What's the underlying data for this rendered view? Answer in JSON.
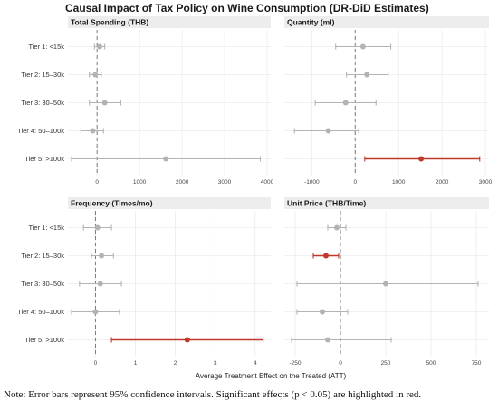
{
  "title": "Causal Impact of Tax Policy on Wine Consumption (DR-DiD Estimates)",
  "xlabel": "Average Treatment Effect on the Treated (ATT)",
  "note": "Note: Error bars represent 95% confidence intervals. Significant effects (p < 0.05) are highlighted in red.",
  "colors": {
    "significant": "#c0392b",
    "non_significant": "#b3b3b3",
    "zero_line": "#7a7a7a",
    "grid": "#ebebeb",
    "strip": "#ededed"
  },
  "chart_data": [
    {
      "type": "scatter",
      "panel": "Total Spending (THB)",
      "categories": [
        "Tier 1: <15k",
        "Tier 2: 15–30k",
        "Tier 3: 30–50k",
        "Tier 4: 50–100k",
        "Tier 5: >100k"
      ],
      "xlim": [
        -600,
        4000
      ],
      "xticks": [
        0,
        1000,
        2000,
        3000,
        4000
      ],
      "points": [
        {
          "estimate": 60,
          "lower": -60,
          "upper": 180,
          "significant": false
        },
        {
          "estimate": -40,
          "lower": -180,
          "upper": 100,
          "significant": false
        },
        {
          "estimate": 180,
          "lower": -180,
          "upper": 560,
          "significant": false
        },
        {
          "estimate": -100,
          "lower": -380,
          "upper": 150,
          "significant": false
        },
        {
          "estimate": 1620,
          "lower": -600,
          "upper": 3840,
          "significant": false
        }
      ]
    },
    {
      "type": "scatter",
      "panel": "Quantity (ml)",
      "categories": [
        "Tier 1: <15k",
        "Tier 2: 15–30k",
        "Tier 3: 30–50k",
        "Tier 4: 50–100k",
        "Tier 5: >100k"
      ],
      "xlim": [
        -1550,
        3000
      ],
      "xticks": [
        -1000,
        0,
        1000,
        2000,
        3000
      ],
      "points": [
        {
          "estimate": 180,
          "lower": -450,
          "upper": 820,
          "significant": false
        },
        {
          "estimate": 270,
          "lower": -200,
          "upper": 760,
          "significant": false
        },
        {
          "estimate": -220,
          "lower": -920,
          "upper": 480,
          "significant": false
        },
        {
          "estimate": -620,
          "lower": -1400,
          "upper": 80,
          "significant": false
        },
        {
          "estimate": 1520,
          "lower": 220,
          "upper": 2870,
          "significant": true
        }
      ]
    },
    {
      "type": "scatter",
      "panel": "Frequency (Times/mo)",
      "categories": [
        "Tier 1: <15k",
        "Tier 2: 15–30k",
        "Tier 3: 30–50k",
        "Tier 4: 50–100k",
        "Tier 5: >100k"
      ],
      "xlim": [
        -0.6,
        4.3
      ],
      "xticks": [
        0,
        1,
        2,
        3,
        4
      ],
      "points": [
        {
          "estimate": 0.05,
          "lower": -0.3,
          "upper": 0.4,
          "significant": false
        },
        {
          "estimate": 0.15,
          "lower": -0.1,
          "upper": 0.45,
          "significant": false
        },
        {
          "estimate": 0.12,
          "lower": -0.4,
          "upper": 0.65,
          "significant": false
        },
        {
          "estimate": 0.0,
          "lower": -0.6,
          "upper": 0.6,
          "significant": false
        },
        {
          "estimate": 2.3,
          "lower": 0.4,
          "upper": 4.2,
          "significant": true
        }
      ]
    },
    {
      "type": "scatter",
      "panel": "Unit Price (THB/Time)",
      "categories": [
        "Tier 1: <15k",
        "Tier 2: 15–30k",
        "Tier 3: 30–50k",
        "Tier 4: 50–100k",
        "Tier 5: >100k"
      ],
      "xlim": [
        -290,
        800
      ],
      "xticks": [
        -250,
        0,
        250,
        500,
        750
      ],
      "points": [
        {
          "estimate": -20,
          "lower": -70,
          "upper": 30,
          "significant": false
        },
        {
          "estimate": -80,
          "lower": -150,
          "upper": -10,
          "significant": true
        },
        {
          "estimate": 250,
          "lower": -240,
          "upper": 760,
          "significant": false
        },
        {
          "estimate": -100,
          "lower": -240,
          "upper": 40,
          "significant": false
        },
        {
          "estimate": -70,
          "lower": -270,
          "upper": 280,
          "significant": false
        }
      ]
    }
  ]
}
